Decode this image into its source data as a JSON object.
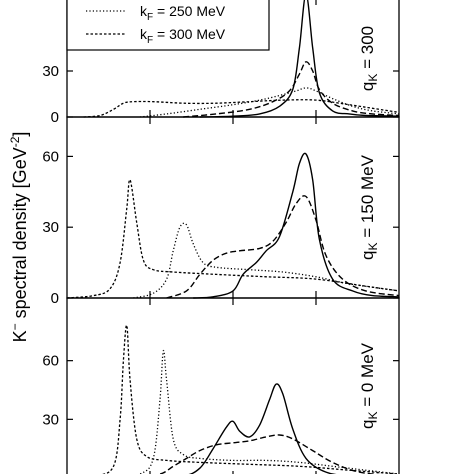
{
  "chart_data": {
    "type": "line",
    "ylabel_main": "K",
    "ylabel_sup": "−",
    "ylabel_rest": " spectral density [GeV",
    "ylabel_unit_sup": "-2",
    "ylabel_end": "]",
    "legend": {
      "placement": "top-left",
      "entries": [
        {
          "prefix": "k",
          "sub": "F",
          "text": " = 250 MeV",
          "style": "dotted-fine"
        },
        {
          "prefix": "k",
          "sub": "F",
          "text": " = 300 MeV",
          "style": "dotted"
        }
      ]
    },
    "xlim": [
      0,
      1
    ],
    "panels": [
      {
        "label_prefix": "q",
        "label_sub": "K",
        "label_text": " = 300",
        "ylim": [
          0,
          75
        ],
        "yticks": [
          "0",
          "30"
        ],
        "ytick_values": [
          0,
          30
        ],
        "series": [
          {
            "style": "solid",
            "x": [
              0.4,
              0.5,
              0.58,
              0.64,
              0.68,
              0.7,
              0.72,
              0.74,
              0.76,
              0.8,
              0.85,
              0.9,
              1.0
            ],
            "y": [
              0,
              0.5,
              2,
              7,
              18,
              45,
              80,
              45,
              16,
              4,
              2,
              1,
              0.5
            ]
          },
          {
            "style": "dashed",
            "x": [
              0.35,
              0.45,
              0.55,
              0.62,
              0.67,
              0.7,
              0.72,
              0.74,
              0.76,
              0.8,
              0.86,
              0.92,
              1.0
            ],
            "y": [
              0,
              2,
              5,
              10,
              17,
              28,
              36,
              30,
              18,
              9,
              4,
              2,
              1
            ]
          },
          {
            "style": "dotted-fine",
            "x": [
              0.22,
              0.3,
              0.4,
              0.5,
              0.58,
              0.64,
              0.69,
              0.72,
              0.75,
              0.8,
              0.86,
              0.92,
              1.0
            ],
            "y": [
              0,
              2,
              5,
              8,
              11,
              14,
              17,
              19,
              17,
              12,
              7,
              4,
              2
            ]
          },
          {
            "style": "dotted",
            "x": [
              0.05,
              0.1,
              0.14,
              0.17,
              0.2,
              0.26,
              0.35,
              0.45,
              0.55,
              0.65,
              0.75,
              0.85,
              1.0
            ],
            "y": [
              0,
              1,
              5,
              9,
              10,
              10,
              9,
              9,
              10,
              11,
              11,
              8,
              3
            ]
          }
        ]
      },
      {
        "label_prefix": "q",
        "label_sub": "K",
        "label_text": " = 150 MeV",
        "ylim": [
          0,
          75
        ],
        "yticks": [
          "0",
          "30",
          "60"
        ],
        "ytick_values": [
          0,
          30,
          60
        ],
        "series": [
          {
            "style": "solid",
            "x": [
              0.38,
              0.44,
              0.5,
              0.53,
              0.57,
              0.6,
              0.64,
              0.68,
              0.7,
              0.72,
              0.74,
              0.76,
              0.8,
              0.86,
              0.92,
              1.0
            ],
            "y": [
              0,
              0.5,
              3,
              10,
              15,
              20,
              26,
              45,
              57,
              61,
              50,
              25,
              8,
              3,
              1,
              0.5
            ]
          },
          {
            "style": "dashed",
            "x": [
              0.3,
              0.36,
              0.4,
              0.44,
              0.48,
              0.52,
              0.58,
              0.62,
              0.66,
              0.69,
              0.72,
              0.75,
              0.78,
              0.83,
              0.9,
              1.0
            ],
            "y": [
              0,
              3,
              10,
              16,
              19,
              20,
              21,
              24,
              32,
              40,
              43,
              33,
              18,
              8,
              3,
              1
            ]
          },
          {
            "style": "dotted-fine",
            "x": [
              0.2,
              0.26,
              0.3,
              0.32,
              0.34,
              0.36,
              0.38,
              0.41,
              0.45,
              0.55,
              0.65,
              0.75,
              0.85,
              1.0
            ],
            "y": [
              0,
              2,
              8,
              20,
              30,
              31,
              23,
              15,
              13,
              12,
              11,
              9,
              6,
              3
            ]
          },
          {
            "style": "dotted",
            "x": [
              0.0,
              0.08,
              0.13,
              0.16,
              0.18,
              0.19,
              0.21,
              0.23,
              0.26,
              0.32,
              0.45,
              0.6,
              0.75,
              0.9,
              1.0
            ],
            "y": [
              0,
              1,
              4,
              15,
              38,
              50,
              32,
              16,
              12,
              11,
              10,
              9,
              8,
              5,
              3
            ]
          }
        ]
      },
      {
        "label_prefix": "q",
        "label_sub": "K",
        "label_text": " = 0 MeV",
        "ylim": [
          0,
          90
        ],
        "yticks": [
          "30",
          "60"
        ],
        "ytick_values": [
          30,
          60
        ],
        "series": [
          {
            "style": "solid",
            "x": [
              0.25,
              0.35,
              0.4,
              0.44,
              0.48,
              0.5,
              0.52,
              0.55,
              0.58,
              0.61,
              0.63,
              0.65,
              0.68,
              0.72,
              0.78,
              0.86,
              1.0
            ],
            "y": [
              0,
              1,
              5,
              15,
              26,
              29,
              24,
              21,
              27,
              40,
              48,
              43,
              25,
              10,
              3,
              1,
              0
            ]
          },
          {
            "style": "dashed",
            "x": [
              0.2,
              0.28,
              0.32,
              0.36,
              0.4,
              0.45,
              0.5,
              0.55,
              0.6,
              0.64,
              0.68,
              0.74,
              0.8,
              0.88,
              1.0
            ],
            "y": [
              0,
              2,
              6,
              10,
              14,
              17,
              18,
              19,
              21,
              22,
              20,
              14,
              8,
              3,
              1
            ]
          },
          {
            "style": "dotted-fine",
            "x": [
              0.15,
              0.22,
              0.26,
              0.28,
              0.29,
              0.3,
              0.32,
              0.35,
              0.4,
              0.5,
              0.6,
              0.7,
              0.8,
              0.9,
              1.0
            ],
            "y": [
              0,
              2,
              10,
              40,
              65,
              50,
              20,
              12,
              10,
              9,
              9,
              8,
              6,
              4,
              2
            ]
          },
          {
            "style": "dotted",
            "x": [
              0.0,
              0.08,
              0.14,
              0.16,
              0.17,
              0.18,
              0.19,
              0.21,
              0.24,
              0.3,
              0.4,
              0.55,
              0.7,
              0.85,
              1.0
            ],
            "y": [
              0,
              1,
              6,
              30,
              60,
              78,
              50,
              20,
              11,
              9,
              8,
              7,
              6,
              4,
              2
            ]
          }
        ]
      }
    ]
  }
}
